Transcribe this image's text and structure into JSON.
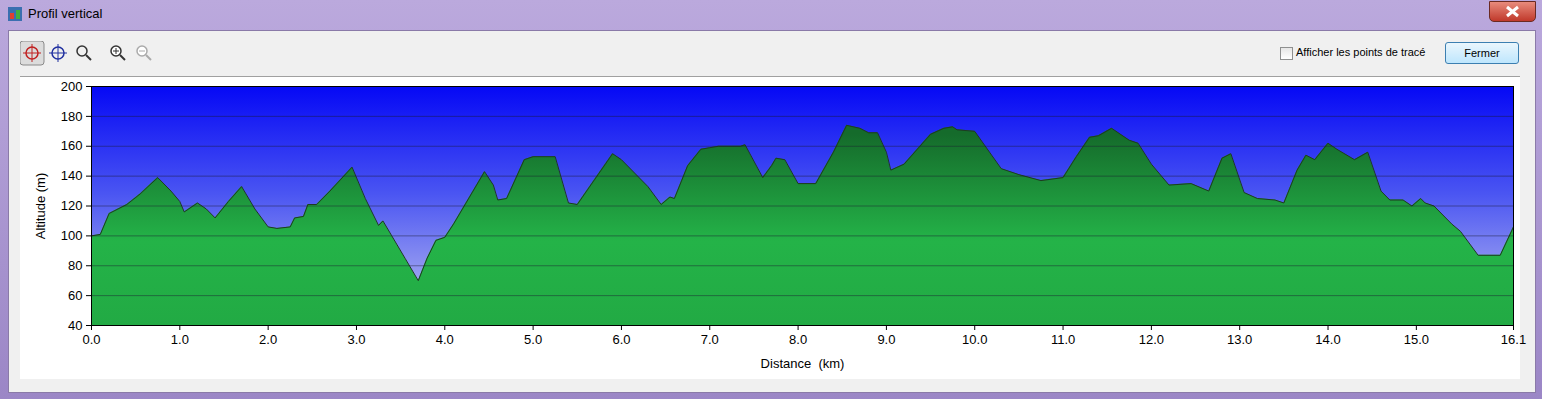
{
  "window": {
    "title": "Profil vertical",
    "checkbox_label": "Afficher les points de tracé",
    "button": "Fermer"
  },
  "chart_data": {
    "type": "area",
    "x_label": "Distance  (km)",
    "y_label": "Altitude (m)",
    "color": "#22aa44",
    "grid": true,
    "x": [
      0.0,
      0.1,
      0.2,
      0.3,
      0.4,
      0.55,
      0.75,
      0.9,
      1.0,
      1.05,
      1.2,
      1.3,
      1.4,
      1.55,
      1.7,
      1.85,
      2.0,
      2.1,
      2.25,
      2.3,
      2.4,
      2.45,
      2.55,
      2.7,
      2.95,
      3.1,
      3.25,
      3.3,
      3.4,
      3.55,
      3.7,
      3.8,
      3.9,
      4.0,
      4.1,
      4.2,
      4.45,
      4.55,
      4.6,
      4.7,
      4.9,
      5.0,
      5.25,
      5.4,
      5.5,
      5.7,
      5.9,
      6.0,
      6.3,
      6.45,
      6.55,
      6.6,
      6.75,
      6.9,
      7.0,
      7.1,
      7.35,
      7.4,
      7.6,
      7.7,
      7.75,
      7.85,
      8.0,
      8.2,
      8.4,
      8.55,
      8.7,
      8.8,
      8.9,
      9.0,
      9.05,
      9.2,
      9.5,
      9.65,
      9.75,
      9.8,
      10.0,
      10.3,
      10.5,
      10.75,
      11.0,
      11.15,
      11.3,
      11.4,
      11.55,
      11.75,
      11.85,
      12.0,
      12.2,
      12.45,
      12.65,
      12.8,
      12.9,
      13.05,
      13.2,
      13.4,
      13.5,
      13.65,
      13.75,
      13.85,
      14.0,
      14.1,
      14.3,
      14.45,
      14.6,
      14.7,
      14.85,
      14.95,
      15.05,
      15.1,
      15.2,
      15.4,
      15.5,
      15.7,
      15.95,
      16.1
    ],
    "values": [
      100,
      101,
      115,
      118,
      121,
      128,
      139,
      130,
      123,
      116,
      122,
      118,
      112,
      123,
      133,
      118,
      106,
      105,
      106,
      112,
      113,
      121,
      121,
      130,
      146,
      125,
      107,
      110,
      100,
      85,
      70,
      85,
      97,
      99,
      108,
      118,
      143,
      134,
      124,
      125,
      151,
      153,
      153,
      122,
      121,
      138,
      155,
      151,
      133,
      121,
      126,
      125,
      147,
      158,
      159,
      160,
      160,
      161,
      139,
      147,
      152,
      151,
      135,
      135,
      156,
      174,
      172,
      169,
      169,
      156,
      144,
      148,
      168,
      172,
      173,
      171,
      170,
      145,
      141,
      137,
      139,
      153,
      166,
      167,
      172,
      164,
      162,
      148,
      134,
      135,
      130,
      152,
      155,
      129,
      125,
      124,
      122,
      144,
      154,
      151,
      162,
      158,
      151,
      156,
      130,
      124,
      124,
      120,
      125,
      122,
      120,
      108,
      103,
      87,
      87,
      106
    ],
    "xlim": [
      0,
      16.1
    ],
    "xticks": [
      {
        "value": 0,
        "label": "0.0"
      },
      {
        "value": 1,
        "label": "1.0"
      },
      {
        "value": 2,
        "label": "2.0"
      },
      {
        "value": 3,
        "label": "3.0"
      },
      {
        "value": 4,
        "label": "4.0"
      },
      {
        "value": 5,
        "label": "5.0"
      },
      {
        "value": 6,
        "label": "6.0"
      },
      {
        "value": 7,
        "label": "7.0"
      },
      {
        "value": 8,
        "label": "8.0"
      },
      {
        "value": 9,
        "label": "9.0"
      },
      {
        "value": 10,
        "label": "10.0"
      },
      {
        "value": 11,
        "label": "11.0"
      },
      {
        "value": 12,
        "label": "12.0"
      },
      {
        "value": 13,
        "label": "13.0"
      },
      {
        "value": 14,
        "label": "14.0"
      },
      {
        "value": 15,
        "label": "15.0"
      },
      {
        "value": 16.1,
        "label": "16.1"
      }
    ],
    "ylim": [
      40,
      200
    ],
    "yticks": [
      40,
      60,
      80,
      100,
      120,
      140,
      160,
      180,
      200
    ]
  }
}
